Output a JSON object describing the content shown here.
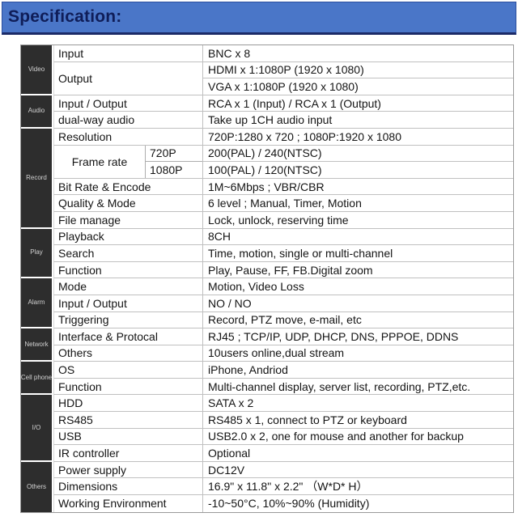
{
  "header": {
    "title": "Specification:"
  },
  "colors": {
    "header_bg": "#4a76c8",
    "header_border": "#1b2a66",
    "title_text": "#0f1d58",
    "sidebar_bg": "#2d2d2d",
    "sidebar_text": "#d2d2d2",
    "gridline": "#c0c0c0"
  },
  "sidebar": {
    "groups": [
      {
        "label": "Video"
      },
      {
        "label": "Audio"
      },
      {
        "label": "Record"
      },
      {
        "label": "Play"
      },
      {
        "label": "Alarm"
      },
      {
        "label": "Network"
      },
      {
        "label": "Cell phone"
      },
      {
        "label": "I/O"
      },
      {
        "label": "Others"
      }
    ]
  },
  "rows": [
    {
      "label": "Input",
      "value": "BNC x 8"
    },
    {
      "label": "Output",
      "value": "HDMI x 1:1080P (1920 x 1080)"
    },
    {
      "value": "VGA x 1:1080P (1920 x 1080)"
    },
    {
      "label": "Input / Output",
      "value": "RCA x 1 (Input) / RCA x 1 (Output)"
    },
    {
      "label": "dual-way audio",
      "value": "Take up 1CH audio input"
    },
    {
      "label": "Resolution",
      "value": "720P:1280 x 720 ; 1080P:1920 x 1080"
    },
    {
      "label": "Frame rate",
      "sub": "720P",
      "value": "200(PAL) / 240(NTSC)"
    },
    {
      "sub": "1080P",
      "value": "100(PAL) / 120(NTSC)"
    },
    {
      "label": "Bit Rate & Encode",
      "value": "1M~6Mbps ; VBR/CBR"
    },
    {
      "label": "Quality & Mode",
      "value": "6 level ; Manual, Timer, Motion"
    },
    {
      "label": "File manage",
      "value": "Lock, unlock, reserving time"
    },
    {
      "label": "Playback",
      "value": "8CH"
    },
    {
      "label": "Search",
      "value": "Time, motion, single or multi-channel"
    },
    {
      "label": "Function",
      "value": "Play, Pause, FF, FB.Digital zoom"
    },
    {
      "label": "Mode",
      "value": "Motion, Video Loss"
    },
    {
      "label": "Input / Output",
      "value": "NO / NO"
    },
    {
      "label": "Triggering",
      "value": "Record, PTZ move,  e-mail, etc"
    },
    {
      "label": "Interface & Protocal",
      "value": "RJ45 ; TCP/IP, UDP, DHCP, DNS, PPPOE, DDNS"
    },
    {
      "label": "Others",
      "value": "10users online,dual stream"
    },
    {
      "label": "OS",
      "value": "iPhone, Andriod"
    },
    {
      "label": "Function",
      "value": "Multi-channel display, server list, recording, PTZ,etc."
    },
    {
      "label": "HDD",
      "value": "SATA x 2"
    },
    {
      "label": "RS485",
      "value": "RS485 x 1, connect to PTZ or keyboard"
    },
    {
      "label": "USB",
      "value": "USB2.0 x 2, one for mouse and another for backup"
    },
    {
      "label": "IR controller",
      "value": "Optional"
    },
    {
      "label": "Power supply",
      "value": "DC12V"
    },
    {
      "label": "Dimensions",
      "value": "16.9\" x 11.8\" x 2.2\" （W*D* H）"
    },
    {
      "label": "Working Environment",
      "value": "-10~50°C, 10%~90% (Humidity)"
    }
  ]
}
